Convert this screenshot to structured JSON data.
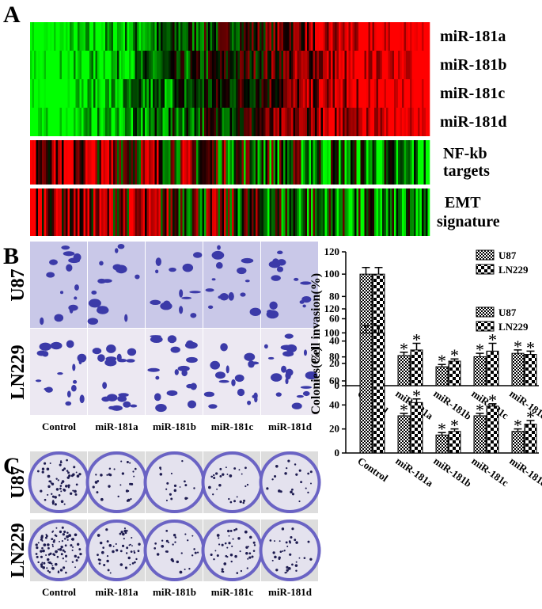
{
  "panels": {
    "a": "A",
    "b": "B",
    "c": "C"
  },
  "heatmap": {
    "rows": [
      "miR-181a",
      "miR-181b",
      "miR-181c",
      "miR-181d"
    ],
    "nfkb": [
      "NF-kb",
      "targets"
    ],
    "emt": [
      "EMT",
      "signature"
    ]
  },
  "images": {
    "rows": [
      "U87",
      "LN229"
    ],
    "columns": [
      "Control",
      "miR-181a",
      "miR-181b",
      "miR-181c",
      "miR-181d"
    ]
  },
  "chart_data": [
    {
      "type": "bar",
      "ylabel": "Cell invasion(%)",
      "categories": [
        "Control",
        "miR-181a",
        "miR-181b",
        "miR-181c",
        "miR-181d"
      ],
      "series": [
        {
          "name": "U87",
          "color": "#000000",
          "pattern": "fine",
          "values": [
            100,
            27,
            17,
            26,
            29
          ],
          "errors": [
            6,
            3,
            2,
            3,
            3
          ]
        },
        {
          "name": "LN229",
          "color": "#000000",
          "pattern": "coarse",
          "values": [
            100,
            32,
            22,
            31,
            28
          ],
          "errors": [
            6,
            6,
            2,
            7,
            3
          ]
        }
      ],
      "ylim": [
        0,
        120
      ],
      "yticks": [
        0,
        20,
        40,
        60,
        80,
        100,
        120
      ],
      "legend": "top-right",
      "annotations": [
        {
          "text": "*",
          "series": 0,
          "category": 1
        },
        {
          "text": "*",
          "series": 1,
          "category": 1
        },
        {
          "text": "*",
          "series": 0,
          "category": 2
        },
        {
          "text": "*",
          "series": 1,
          "category": 2
        },
        {
          "text": "*",
          "series": 0,
          "category": 3
        },
        {
          "text": "*",
          "series": 1,
          "category": 3
        },
        {
          "text": "*",
          "series": 0,
          "category": 4
        },
        {
          "text": "*",
          "series": 1,
          "category": 4
        }
      ]
    },
    {
      "type": "bar",
      "ylabel": "Colonies(%)",
      "categories": [
        "Control",
        "miR-181a",
        "miR-181b",
        "miR-181c",
        "miR-181d"
      ],
      "series": [
        {
          "name": "U87",
          "color": "#000000",
          "pattern": "fine",
          "values": [
            100,
            31,
            15,
            31,
            18
          ],
          "errors": [
            6,
            2,
            2,
            2,
            2
          ]
        },
        {
          "name": "LN229",
          "color": "#000000",
          "pattern": "coarse",
          "values": [
            100,
            42,
            18,
            39,
            24
          ],
          "errors": [
            6,
            3,
            2,
            2,
            3
          ]
        }
      ],
      "ylim": [
        0,
        120
      ],
      "yticks": [
        0,
        20,
        40,
        60,
        80,
        100,
        120
      ],
      "legend": "top-right",
      "annotations": [
        {
          "text": "*",
          "series": 0,
          "category": 1
        },
        {
          "text": "*",
          "series": 1,
          "category": 1
        },
        {
          "text": "*",
          "series": 0,
          "category": 2
        },
        {
          "text": "*",
          "series": 1,
          "category": 2
        },
        {
          "text": "*",
          "series": 0,
          "category": 3
        },
        {
          "text": "*",
          "series": 1,
          "category": 3
        },
        {
          "text": "*",
          "series": 0,
          "category": 4
        },
        {
          "text": "*",
          "series": 1,
          "category": 4
        }
      ]
    }
  ]
}
